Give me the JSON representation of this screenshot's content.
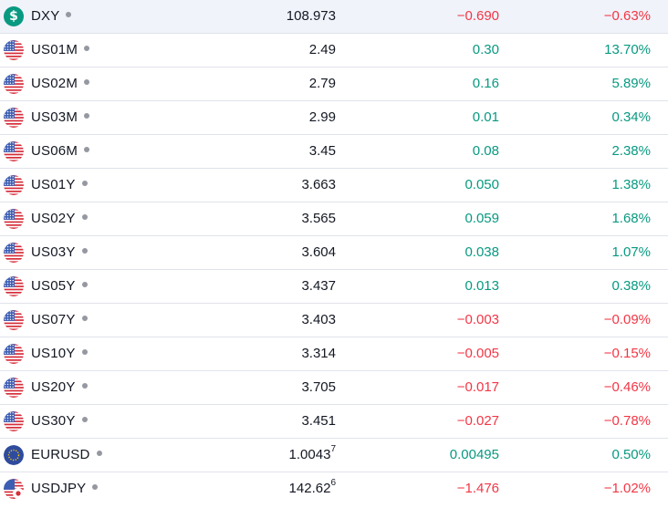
{
  "colors": {
    "positive": "#089981",
    "negative": "#f23645",
    "text": "#131722",
    "dot": "#9598a1"
  },
  "rows": [
    {
      "symbol": "DXY",
      "icon": "dollar-index-icon",
      "last": "108.973",
      "last_sup": "",
      "change": "−0.690",
      "change_pct": "−0.63%",
      "dir": "neg"
    },
    {
      "symbol": "US01M",
      "icon": "us-flag-icon",
      "last": "2.49",
      "last_sup": "",
      "change": "0.30",
      "change_pct": "13.70%",
      "dir": "pos"
    },
    {
      "symbol": "US02M",
      "icon": "us-flag-icon",
      "last": "2.79",
      "last_sup": "",
      "change": "0.16",
      "change_pct": "5.89%",
      "dir": "pos"
    },
    {
      "symbol": "US03M",
      "icon": "us-flag-icon",
      "last": "2.99",
      "last_sup": "",
      "change": "0.01",
      "change_pct": "0.34%",
      "dir": "pos"
    },
    {
      "symbol": "US06M",
      "icon": "us-flag-icon",
      "last": "3.45",
      "last_sup": "",
      "change": "0.08",
      "change_pct": "2.38%",
      "dir": "pos"
    },
    {
      "symbol": "US01Y",
      "icon": "us-flag-icon",
      "last": "3.663",
      "last_sup": "",
      "change": "0.050",
      "change_pct": "1.38%",
      "dir": "pos"
    },
    {
      "symbol": "US02Y",
      "icon": "us-flag-icon",
      "last": "3.565",
      "last_sup": "",
      "change": "0.059",
      "change_pct": "1.68%",
      "dir": "pos"
    },
    {
      "symbol": "US03Y",
      "icon": "us-flag-icon",
      "last": "3.604",
      "last_sup": "",
      "change": "0.038",
      "change_pct": "1.07%",
      "dir": "pos"
    },
    {
      "symbol": "US05Y",
      "icon": "us-flag-icon",
      "last": "3.437",
      "last_sup": "",
      "change": "0.013",
      "change_pct": "0.38%",
      "dir": "pos"
    },
    {
      "symbol": "US07Y",
      "icon": "us-flag-icon",
      "last": "3.403",
      "last_sup": "",
      "change": "−0.003",
      "change_pct": "−0.09%",
      "dir": "neg"
    },
    {
      "symbol": "US10Y",
      "icon": "us-flag-icon",
      "last": "3.314",
      "last_sup": "",
      "change": "−0.005",
      "change_pct": "−0.15%",
      "dir": "neg"
    },
    {
      "symbol": "US20Y",
      "icon": "us-flag-icon",
      "last": "3.705",
      "last_sup": "",
      "change": "−0.017",
      "change_pct": "−0.46%",
      "dir": "neg"
    },
    {
      "symbol": "US30Y",
      "icon": "us-flag-icon",
      "last": "3.451",
      "last_sup": "",
      "change": "−0.027",
      "change_pct": "−0.78%",
      "dir": "neg"
    },
    {
      "symbol": "EURUSD",
      "icon": "eu-us-flag-icon",
      "last": "1.0043",
      "last_sup": "7",
      "change": "0.00495",
      "change_pct": "0.50%",
      "dir": "pos"
    },
    {
      "symbol": "USDJPY",
      "icon": "us-jp-flag-icon",
      "last": "142.62",
      "last_sup": "6",
      "change": "−1.476",
      "change_pct": "−1.02%",
      "dir": "neg"
    }
  ]
}
